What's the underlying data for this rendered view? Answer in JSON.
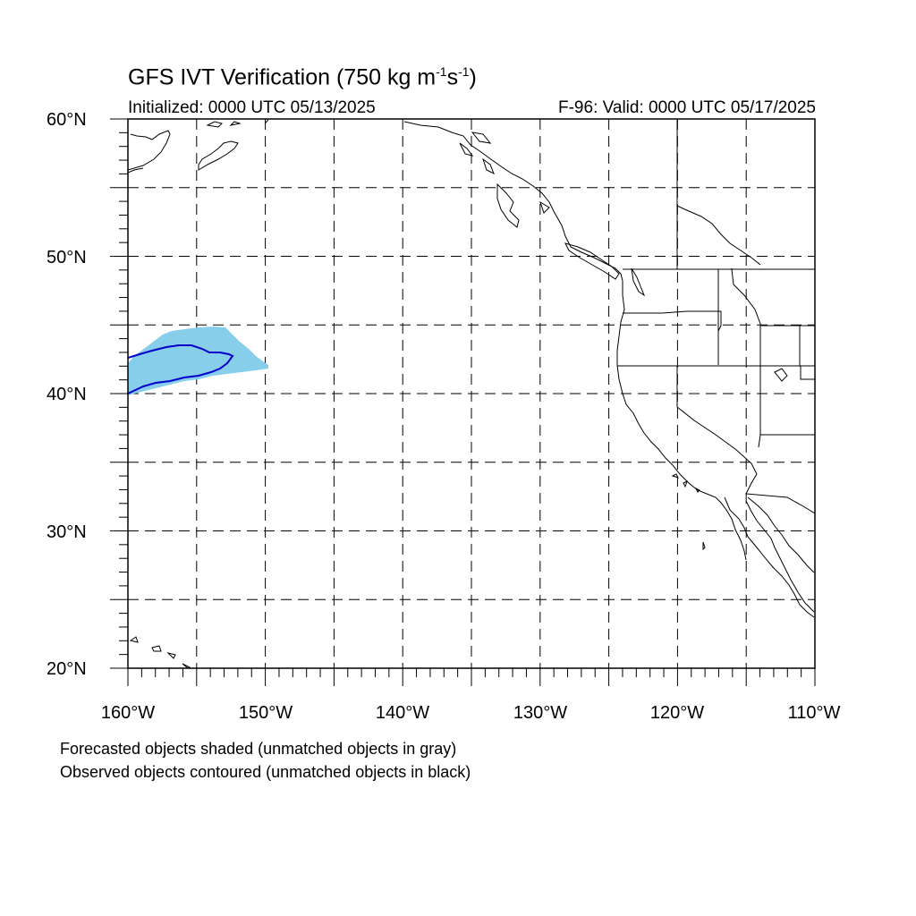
{
  "title": {
    "main": "GFS IVT Verification (750 kg m",
    "exp1": "-1",
    "mid": "s",
    "exp2": "-1",
    "close": ")"
  },
  "initialized": "Initialized: 0000 UTC 05/13/2025",
  "valid": "F-96: Valid: 0000 UTC 05/17/2025",
  "lat_labels": [
    "60°N",
    "50°N",
    "40°N",
    "30°N",
    "20°N"
  ],
  "lon_labels": [
    "160°W",
    "150°W",
    "140°W",
    "130°W",
    "120°W",
    "110°W"
  ],
  "extent": {
    "lon": [
      -160,
      -110
    ],
    "lat": [
      20,
      60
    ]
  },
  "grid_step_deg": 5,
  "colors": {
    "forecast_fill": "#87ceeb",
    "observed_contour": "#0000cd",
    "coastline": "#000000",
    "grid": "#000000"
  },
  "notes": [
    "Forecasted objects shaded (unmatched objects in gray)",
    "Observed objects contoured (unmatched objects in black)"
  ]
}
